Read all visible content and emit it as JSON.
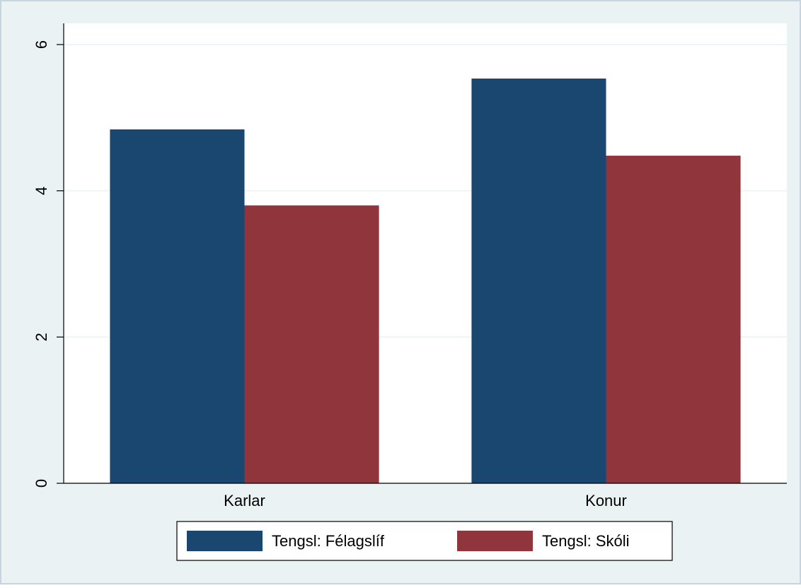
{
  "chart_data": {
    "type": "bar",
    "categories": [
      "Karlar",
      "Konur"
    ],
    "series": [
      {
        "name": "Tengsl: Félagslíf",
        "color": "#1a476f",
        "values": [
          4.84,
          5.535
        ]
      },
      {
        "name": "Tengsl: Skóli",
        "color": "#90353b",
        "values": [
          3.8,
          4.48
        ]
      }
    ],
    "ylim": [
      0,
      6.29
    ],
    "yticks": [
      0,
      2,
      4,
      6
    ],
    "grid": true,
    "legend": "bottom"
  }
}
